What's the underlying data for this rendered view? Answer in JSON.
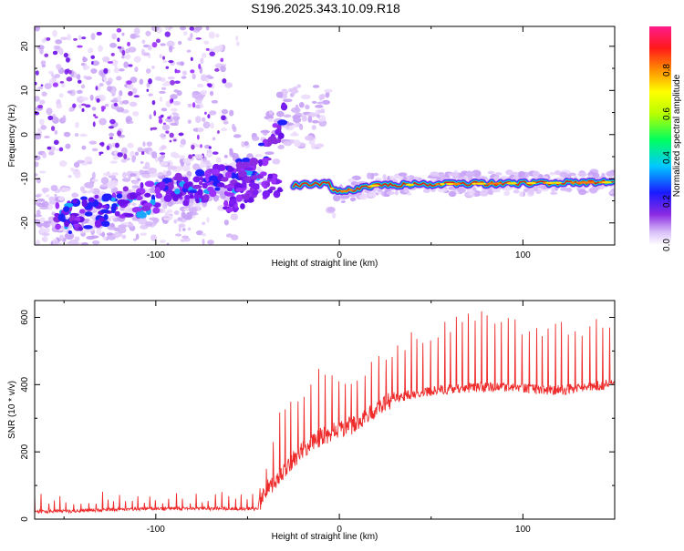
{
  "title": "S196.2025.343.10.09.R18",
  "colors": {
    "snr_line": "#ee2a2a",
    "axis": "#000000",
    "track_core": "#e0201e",
    "scatter_purple": "#7a18f0"
  },
  "chart_data": [
    {
      "type": "heatmap",
      "xlabel": "Height of straight line (km)",
      "ylabel": "Frequency (Hz)",
      "xlim": [
        -166,
        150
      ],
      "ylim": [
        -25,
        24.5
      ],
      "xticks": [
        -100,
        0,
        100
      ],
      "yticks": [
        -20,
        -10,
        0,
        10,
        20
      ],
      "colorbar": {
        "label": "Normalized spectral amplitude",
        "range": [
          0.0,
          1.0
        ],
        "ticks": [
          "0.0",
          "0.2",
          "0.4",
          "0.6",
          "0.8"
        ],
        "colormap": "rainbow (white-purple-blue-cyan-green-yellow-orange-red-magenta)"
      },
      "features": {
        "track": {
          "description": "high-amplitude ridge near -11 Hz",
          "x": [
            -5,
            0,
            20,
            60,
            100,
            150
          ],
          "freq": [
            -12,
            -13,
            -11.5,
            -11.2,
            -11,
            -10.8
          ]
        },
        "rising_branch": {
          "x": [
            -150,
            -110,
            -80,
            -60,
            -45,
            -30
          ],
          "freq": [
            -19,
            -15,
            -12,
            -10,
            -7,
            4
          ]
        }
      }
    },
    {
      "type": "line",
      "xlabel": "Height of straight line (km)",
      "ylabel": "SNR (10 * v/v)",
      "xlim": [
        -166,
        150
      ],
      "ylim": [
        0,
        650
      ],
      "xticks": [
        -100,
        0,
        100
      ],
      "yticks": [
        0,
        200,
        400,
        600
      ],
      "series": [
        {
          "envelope_x": [
            -166,
            -150,
            -120,
            -100,
            -80,
            -60,
            -44,
            -40,
            -30,
            -20,
            -10,
            0,
            10,
            20,
            30,
            40,
            60,
            80,
            100,
            120,
            150
          ],
          "envelope_y": [
            22,
            22,
            28,
            30,
            30,
            30,
            30,
            80,
            140,
            200,
            240,
            260,
            280,
            320,
            355,
            370,
            385,
            390,
            385,
            380,
            400
          ],
          "spike_period_km": 3.5,
          "spike_heights": [
            [
              -150,
              80
            ],
            [
              -100,
              85
            ],
            [
              -44,
              80
            ],
            [
              -40,
              160
            ],
            [
              -30,
              380
            ],
            [
              -20,
              400
            ],
            [
              -10,
              460
            ],
            [
              0,
              420
            ],
            [
              20,
              480
            ],
            [
              40,
              560
            ],
            [
              60,
              600
            ],
            [
              80,
              640
            ],
            [
              100,
              600
            ],
            [
              120,
              590
            ],
            [
              150,
              600
            ]
          ]
        }
      ]
    }
  ]
}
